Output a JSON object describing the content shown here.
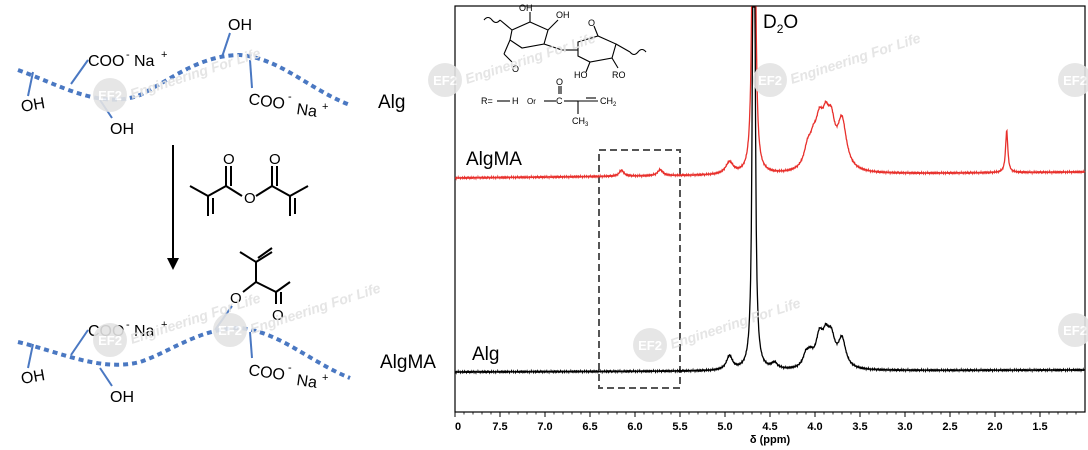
{
  "scheme": {
    "top_chain": {
      "carboxylate": "COO",
      "carboxylate_charge": "-",
      "sodium": "Na",
      "sodium_charge": "+",
      "hydroxyl": "OH",
      "name": "Alg"
    },
    "bottom_chain": {
      "carboxylate": "COO",
      "carboxylate_charge": "-",
      "sodium": "Na",
      "sodium_charge": "+",
      "hydroxyl": "OH",
      "name": "AlgMA"
    },
    "reagent": "methacrylic anhydride"
  },
  "watermark": {
    "logo": "EF2",
    "text": "Engineering For Life"
  },
  "spectrum": {
    "solvent_label": "D",
    "solvent_subscript": "2",
    "solvent_suffix": "O",
    "structure_r_label": "R=",
    "structure_r_option": "H",
    "structure_or": "Or",
    "structure_ch2": "CH",
    "structure_ch2_sub": "2",
    "structure_ch3": "CH",
    "structure_ch3_sub": "3",
    "structure_ho": "HO",
    "structure_ro": "RO",
    "structure_o": "O",
    "structure_oh": "OH",
    "xlabel": "δ (ppm)"
  },
  "chart_data": {
    "type": "line",
    "xlabel": "δ (ppm)",
    "x_tick_labels": [
      "0",
      "7.5",
      "7.0",
      "6.5",
      "6.0",
      "5.5",
      "5.0",
      "4.5",
      "4.0",
      "3.5",
      "3.0",
      "2.5",
      "2.0",
      "1.5"
    ],
    "xlim": [
      8.0,
      1.0
    ],
    "x_reversed": true,
    "y_axis_shown": false,
    "highlight_box_ppm": [
      6.4,
      5.5
    ],
    "series": [
      {
        "name": "AlgMA",
        "color": "#e8302c",
        "peaks_ppm": [
          6.15,
          5.72,
          4.95,
          4.68,
          4.08,
          3.95,
          3.7,
          1.87
        ]
      },
      {
        "name": "Alg",
        "color": "#000000",
        "peaks_ppm": [
          4.95,
          4.68,
          4.45,
          4.1,
          3.95,
          3.7
        ]
      }
    ]
  }
}
